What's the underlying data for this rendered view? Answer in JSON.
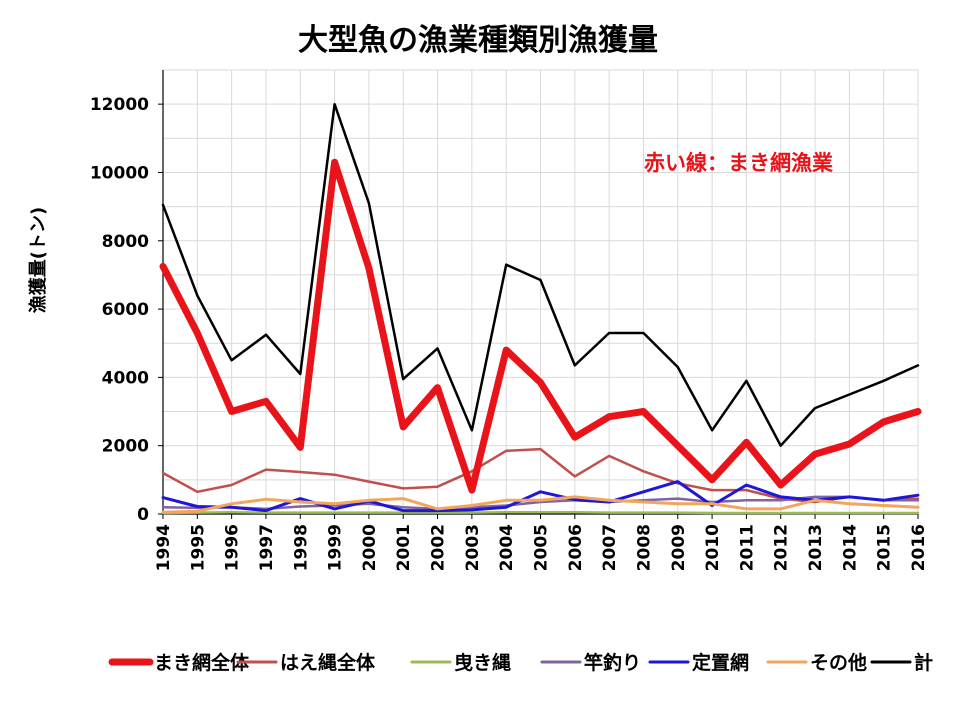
{
  "chart_data": {
    "type": "line",
    "title": "大型魚の漁業種類別漁獲量",
    "ylabel": "漁獲量(トン)",
    "xlabel": "",
    "ylim": [
      0,
      13000
    ],
    "yticks": [
      0,
      2000,
      4000,
      6000,
      8000,
      10000,
      12000
    ],
    "grid": true,
    "legend_position": "bottom",
    "annotation": {
      "text": "赤い線：まき網漁業",
      "color": "#e8141a"
    },
    "categories": [
      "1994",
      "1995",
      "1996",
      "1997",
      "1998",
      "1999",
      "2000",
      "2001",
      "2002",
      "2003",
      "2004",
      "2005",
      "2006",
      "2007",
      "2008",
      "2009",
      "2010",
      "2011",
      "2012",
      "2013",
      "2014",
      "2015",
      "2016"
    ],
    "series": [
      {
        "name": "まき網全体",
        "color": "#e8141a",
        "width": 7,
        "values": [
          7250,
          5300,
          3000,
          3300,
          1950,
          10300,
          7200,
          2550,
          3700,
          700,
          4800,
          3850,
          2250,
          2850,
          3000,
          2000,
          1000,
          2100,
          850,
          1750,
          2050,
          2700,
          3000
        ]
      },
      {
        "name": "はえ縄全体",
        "color": "#c0504d",
        "width": 2.5,
        "values": [
          1200,
          650,
          850,
          1300,
          1230,
          1150,
          950,
          750,
          800,
          1250,
          1850,
          1900,
          1100,
          1700,
          1250,
          900,
          700,
          700,
          450,
          350,
          500,
          400,
          450
        ]
      },
      {
        "name": "曳き縄",
        "color": "#9bbb59",
        "width": 2.5,
        "values": [
          30,
          40,
          50,
          40,
          40,
          40,
          40,
          40,
          40,
          40,
          50,
          50,
          50,
          40,
          40,
          40,
          30,
          30,
          30,
          30,
          30,
          30,
          30
        ]
      },
      {
        "name": "竿釣り",
        "color": "#8064a2",
        "width": 2.5,
        "values": [
          200,
          180,
          200,
          150,
          220,
          250,
          300,
          200,
          150,
          200,
          250,
          350,
          400,
          350,
          400,
          450,
          350,
          400,
          400,
          500,
          500,
          400,
          400
        ]
      },
      {
        "name": "定置網",
        "color": "#1f17d6",
        "width": 3,
        "values": [
          480,
          220,
          200,
          100,
          450,
          150,
          380,
          100,
          100,
          120,
          200,
          650,
          420,
          350,
          650,
          950,
          250,
          850,
          500,
          400,
          500,
          400,
          550
        ]
      },
      {
        "name": "その他",
        "color": "#f2a55c",
        "width": 3,
        "values": [
          50,
          80,
          300,
          430,
          350,
          300,
          400,
          450,
          150,
          250,
          400,
          400,
          500,
          400,
          350,
          300,
          300,
          150,
          150,
          400,
          300,
          250,
          200
        ]
      },
      {
        "name": "計",
        "color": "#000000",
        "width": 2.5,
        "values": [
          9050,
          6400,
          4500,
          5250,
          4100,
          12000,
          9100,
          3950,
          4850,
          2450,
          7300,
          6850,
          4350,
          5300,
          5300,
          4300,
          2450,
          3900,
          2000,
          3100,
          3500,
          3900,
          4350
        ]
      }
    ]
  }
}
